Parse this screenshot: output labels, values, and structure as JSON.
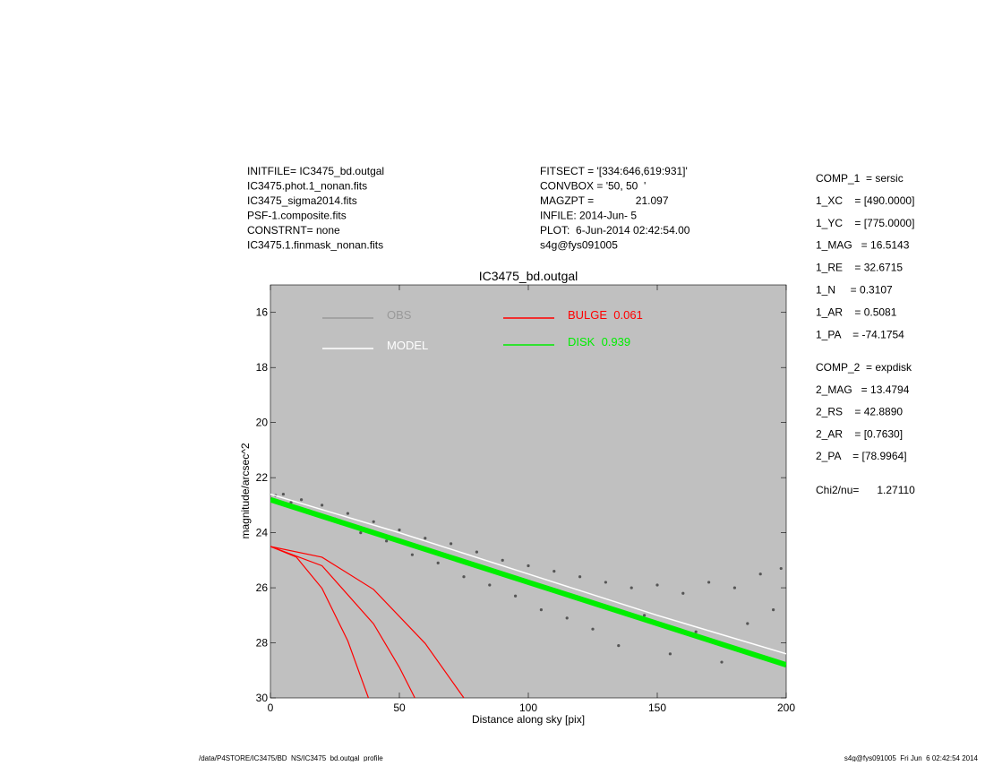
{
  "header": {
    "left": [
      "INITFILE= IC3475_bd.outgal",
      "IC3475.phot.1_nonan.fits",
      "IC3475_sigma2014.fits",
      "PSF-1.composite.fits",
      "CONSTRNT= none",
      "IC3475.1.finmask_nonan.fits"
    ],
    "middle": [
      "FITSECT = '[334:646,619:931]'",
      "CONVBOX = '50, 50  '",
      "MAGZPT =              21.097",
      "INFILE: 2014-Jun- 5",
      "PLOT:  6-Jun-2014 02:42:54.00",
      "s4g@fys091005"
    ]
  },
  "fit_params": {
    "comp1": [
      "COMP_1  = sersic",
      "1_XC    = [490.0000]",
      "1_YC    = [775.0000]",
      "1_MAG   = 16.5143",
      "1_RE    = 32.6715",
      "1_N     = 0.3107",
      "1_AR    = 0.5081",
      "1_PA    = -74.1754"
    ],
    "comp2": [
      "COMP_2  = expdisk",
      "2_MAG   = 13.4794",
      "2_RS    = 42.8890",
      "2_AR    = [0.7630]",
      "2_PA    = [78.9964]"
    ],
    "chi2": "Chi2/nu=      1.27110"
  },
  "footer": {
    "left": "/data/P4STORE/IC3475/BD_NS/IC3475_bd.outgal_profile",
    "right": "s4g@fys091005  Fri Jun  6 02:42:54 2014"
  },
  "chart_data": {
    "type": "scatter",
    "title": "IC3475_bd.outgal",
    "xlabel": "Distance along sky [pix]",
    "ylabel": "magnitude/arcsec^2",
    "xlim": [
      0,
      200
    ],
    "ylim": [
      15,
      30
    ],
    "y_inverted": true,
    "xticks": [
      0,
      50,
      100,
      150,
      200
    ],
    "yticks": [
      16,
      18,
      20,
      22,
      24,
      26,
      28,
      30
    ],
    "background": "#c0c0c0",
    "series": [
      {
        "name": "OBS",
        "color": "#555555",
        "mode": "points",
        "x": [
          2,
          5,
          8,
          12,
          15,
          20,
          25,
          30,
          35,
          40,
          45,
          50,
          55,
          60,
          65,
          70,
          75,
          80,
          85,
          90,
          95,
          100,
          105,
          110,
          115,
          120,
          125,
          130,
          135,
          140,
          145,
          150,
          155,
          160,
          165,
          170,
          175,
          180,
          185,
          190,
          195,
          198
        ],
        "values": [
          22.65,
          22.6,
          22.9,
          22.8,
          23.2,
          23.0,
          23.5,
          23.3,
          24.0,
          23.6,
          24.3,
          23.9,
          24.8,
          24.2,
          25.1,
          24.4,
          25.6,
          24.7,
          25.9,
          25.0,
          26.3,
          25.2,
          26.8,
          25.4,
          27.1,
          25.6,
          27.5,
          25.8,
          28.1,
          26.0,
          27.0,
          25.9,
          28.4,
          26.2,
          27.6,
          25.8,
          28.7,
          26.0,
          27.3,
          25.5,
          26.8,
          25.3
        ]
      },
      {
        "name": "DISK  0.939",
        "color": "#00ee00",
        "mode": "line",
        "x": [
          0,
          50,
          100,
          150,
          200
        ],
        "values": [
          22.8,
          24.3,
          25.8,
          27.3,
          28.8
        ]
      },
      {
        "name": "MODEL",
        "color": "#ffffff",
        "mode": "line",
        "x": [
          0,
          50,
          100,
          150,
          200
        ],
        "values": [
          22.6,
          24.0,
          25.5,
          27.0,
          28.4
        ]
      },
      {
        "name": "BULGE  0.061",
        "color": "#ff0000",
        "mode": "line",
        "x": [
          0,
          10,
          20,
          30,
          38,
          null,
          0,
          20,
          40,
          50,
          56,
          null,
          0,
          20,
          40,
          60,
          75
        ],
        "values": [
          24.5,
          24.88,
          26.02,
          27.93,
          30.0,
          null,
          24.5,
          25.2,
          27.31,
          28.89,
          30.0,
          null,
          24.5,
          24.89,
          26.06,
          28.02,
          30.0
        ]
      }
    ]
  }
}
